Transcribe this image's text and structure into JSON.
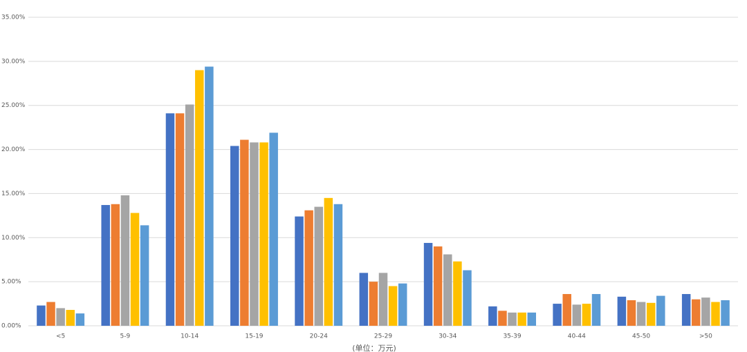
{
  "chart_data": {
    "type": "bar",
    "x_label": "(单位：万元)",
    "categories": [
      "<5",
      "5-9",
      "10-14",
      "15-19",
      "20-24",
      "25-29",
      "30-34",
      "35-39",
      "40-44",
      "45-50",
      ">50"
    ],
    "series": [
      {
        "color": "#4472c4",
        "values": [
          2.3,
          13.7,
          24.1,
          20.4,
          12.4,
          6.0,
          9.4,
          2.2,
          2.5,
          3.3,
          3.6
        ]
      },
      {
        "color": "#ed7d31",
        "values": [
          2.7,
          13.8,
          24.1,
          21.1,
          13.1,
          5.0,
          9.0,
          1.7,
          3.6,
          2.9,
          3.0
        ]
      },
      {
        "color": "#a5a5a5",
        "values": [
          2.0,
          14.8,
          25.1,
          20.8,
          13.5,
          6.0,
          8.1,
          1.5,
          2.4,
          2.7,
          3.2
        ]
      },
      {
        "color": "#ffc000",
        "values": [
          1.8,
          12.8,
          29.0,
          20.8,
          14.5,
          4.5,
          7.3,
          1.5,
          2.5,
          2.6,
          2.7
        ]
      },
      {
        "color": "#5b9bd5",
        "values": [
          1.4,
          11.4,
          29.4,
          21.9,
          13.8,
          4.8,
          6.3,
          1.5,
          3.6,
          3.4,
          2.9
        ]
      }
    ],
    "ylim": [
      0,
      35
    ],
    "yticks": [
      {
        "value": 0,
        "label": "0.00%"
      },
      {
        "value": 5,
        "label": "5.00%"
      },
      {
        "value": 10,
        "label": "10.00%"
      },
      {
        "value": 15,
        "label": "15.00%"
      },
      {
        "value": 20,
        "label": "20.00%"
      },
      {
        "value": 25,
        "label": "25.00%"
      },
      {
        "value": 30,
        "label": "30.00%"
      },
      {
        "value": 35,
        "label": "35.00%"
      }
    ],
    "grid": true
  }
}
